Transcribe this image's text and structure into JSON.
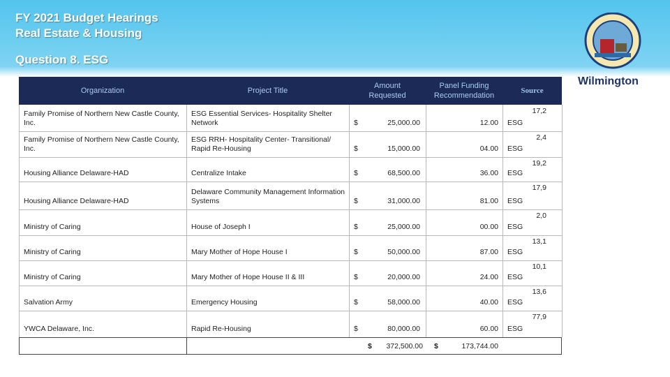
{
  "header": {
    "title_line1": "FY 2021 Budget Hearings",
    "title_line2": "Real Estate & Housing",
    "subtitle": "Question 8. ESG",
    "logo_text": "Wilmington"
  },
  "table": {
    "columns": [
      "Organization",
      "Project Title",
      "Amount Requested",
      "Panel Funding Recommendation",
      "Source"
    ],
    "rows": [
      {
        "organization": "Family Promise of Northern New Castle County, Inc.",
        "project": "ESG Essential Services- Hospitality Shelter Network",
        "dollar": "$",
        "amount": "25,000.00",
        "panel": "12.00",
        "source": "ESG",
        "panel_prefix": "17,2"
      },
      {
        "organization": "Family Promise of Northern New Castle County, Inc.",
        "project": "ESG RRH- Hospitality Center- Transitional/ Rapid Re-Housing",
        "dollar": "$",
        "amount": "15,000.00",
        "panel": "04.00",
        "source": "ESG",
        "panel_prefix": "2,4"
      },
      {
        "organization": "Housing Alliance Delaware-HAD",
        "project": "Centralize Intake",
        "dollar": "$",
        "amount": "68,500.00",
        "panel": "36.00",
        "source": "ESG",
        "panel_prefix": "19,2"
      },
      {
        "organization": "Housing Alliance Delaware-HAD",
        "project": "Delaware Community Management Information Systems",
        "dollar": "$",
        "amount": "31,000.00",
        "panel": "81.00",
        "source": "ESG",
        "panel_prefix": "17,9"
      },
      {
        "organization": "Ministry of Caring",
        "project": "House of Joseph I",
        "dollar": "$",
        "amount": "25,000.00",
        "panel": "00.00",
        "source": "ESG",
        "panel_prefix": "2,0"
      },
      {
        "organization": "Ministry of Caring",
        "project": "Mary Mother of Hope House I",
        "dollar": "$",
        "amount": "50,000.00",
        "panel": "87.00",
        "source": "ESG",
        "panel_prefix": "13,1"
      },
      {
        "organization": "Ministry of Caring",
        "project": "Mary Mother of Hope House II & III",
        "dollar": "$",
        "amount": "20,000.00",
        "panel": "24.00",
        "source": "ESG",
        "panel_prefix": "10,1"
      },
      {
        "organization": "Salvation Army",
        "project": "Emergency Housing",
        "dollar": "$",
        "amount": "58,000.00",
        "panel": "40.00",
        "source": "ESG",
        "panel_prefix": "13,6"
      },
      {
        "organization": "YWCA Delaware, Inc.",
        "project": "Rapid Re-Housing",
        "dollar": "$",
        "amount": "80,000.00",
        "panel": "60.00",
        "source": "ESG",
        "panel_prefix": "77,9"
      }
    ],
    "total": {
      "amount_dollar": "$",
      "amount": "372,500.00",
      "panel_dollar": "$",
      "panel": "173,744.00"
    }
  }
}
